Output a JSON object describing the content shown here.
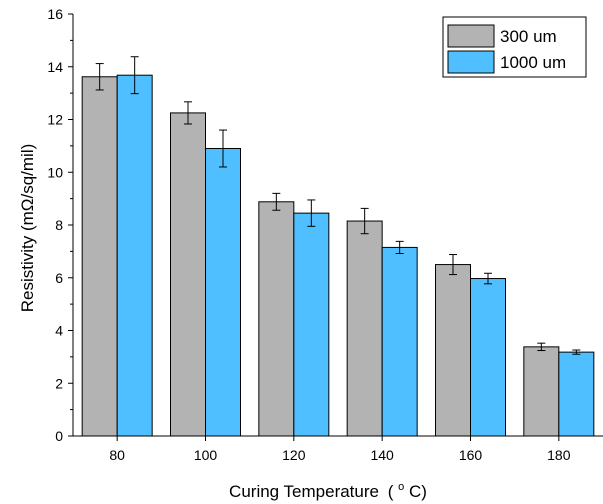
{
  "chart_data": {
    "type": "bar",
    "categories": [
      "80",
      "100",
      "120",
      "140",
      "160",
      "180"
    ],
    "series": [
      {
        "name": "300 um",
        "values": [
          13.62,
          12.25,
          8.88,
          8.15,
          6.5,
          3.38
        ],
        "errors": [
          0.5,
          0.42,
          0.32,
          0.48,
          0.38,
          0.14
        ]
      },
      {
        "name": "1000 um",
        "values": [
          13.68,
          10.9,
          8.45,
          7.15,
          5.97,
          3.18
        ],
        "errors": [
          0.7,
          0.7,
          0.5,
          0.23,
          0.2,
          0.08
        ]
      }
    ],
    "colors": [
      "#b3b3b3",
      "#4fbfff"
    ],
    "title": "",
    "xlabel": "Curing Temperature",
    "xlabel_unit_open": "(",
    "xlabel_unit_sup": "o",
    "xlabel_unit_rest": "C)",
    "ylabel": "Resistivity (mΩ/sq/mil)",
    "ylim": [
      0,
      16
    ],
    "yticks": [
      "0",
      "2",
      "4",
      "6",
      "8",
      "10",
      "12",
      "14",
      "16"
    ],
    "grid": false,
    "legend_position": "top-right"
  }
}
